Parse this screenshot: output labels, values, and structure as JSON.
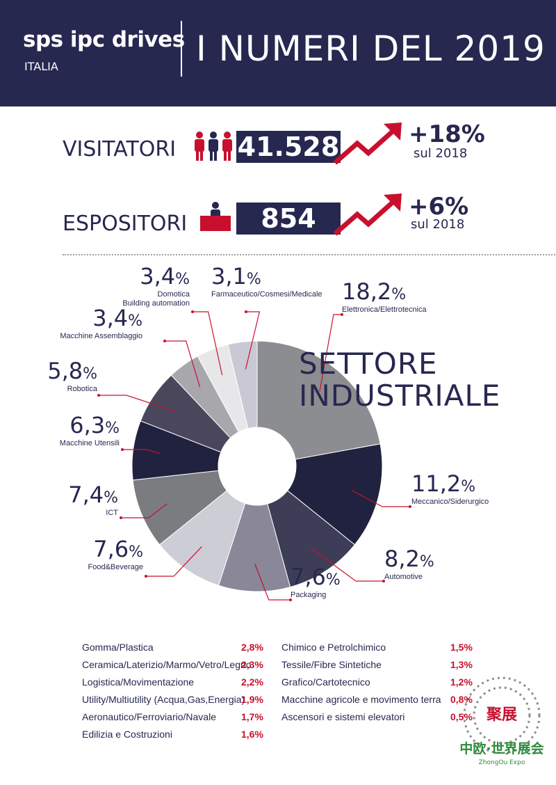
{
  "header": {
    "brand": "sps ipc drives",
    "brand_sub": "ITALIA",
    "title": "I NUMERI DEL 2019"
  },
  "stats": {
    "visitors": {
      "label": "VISITATORI",
      "value": "41.528",
      "change": "+18%",
      "change_note": "sul 2018"
    },
    "exhibitors": {
      "label": "ESPOSITORI",
      "value": "854",
      "change": "+6%",
      "change_note": "sul 2018"
    }
  },
  "colors": {
    "navy": "#262850",
    "red": "#c8102e"
  },
  "chart_data": {
    "type": "pie",
    "title": "SETTORE INDUSTRIALE",
    "slices": [
      {
        "label": "Elettronica/Elettrotecnica",
        "value": 18.2,
        "value_label": "18,2",
        "color": "#8c8d91"
      },
      {
        "label": "Meccanico/Siderurgico",
        "value": 11.2,
        "value_label": "11,2",
        "color": "#20223f"
      },
      {
        "label": "Automotive",
        "value": 8.2,
        "value_label": "8,2",
        "color": "#3d3d58"
      },
      {
        "label": "Packaging",
        "value": 7.6,
        "value_label": "7,6",
        "color": "#8a8799"
      },
      {
        "label": "Food&Beverage",
        "value": 7.6,
        "value_label": "7,6",
        "color": "#cdcdd6"
      },
      {
        "label": "ICT",
        "value": 7.4,
        "value_label": "7,4",
        "color": "#7b7c80"
      },
      {
        "label": "Macchine Utensili",
        "value": 6.3,
        "value_label": "6,3",
        "color": "#20223f"
      },
      {
        "label": "Robotica",
        "value": 5.8,
        "value_label": "5,8",
        "color": "#4a475d"
      },
      {
        "label": "Macchine Assemblaggio",
        "value": 3.4,
        "value_label": "3,4",
        "color": "#a8a8ac"
      },
      {
        "label": "Domotica\nBuilding automation",
        "value": 3.4,
        "value_label": "3,4",
        "color": "#e7e7ea"
      },
      {
        "label": "Farmaceutico/Cosmesi/Medicale",
        "value": 3.1,
        "value_label": "3,1",
        "color": "#c9c8d4"
      }
    ],
    "pct_symbol": "%"
  },
  "other_sectors": [
    {
      "label": "Gomma/Plastica",
      "value": "2,8%"
    },
    {
      "label": "Ceramica/Laterizio/Marmo/Vetro/Legno",
      "value": "2,3%"
    },
    {
      "label": "Logistica/Movimentazione",
      "value": "2,2%"
    },
    {
      "label": "Utility/Multiutility (Acqua,Gas,Energia)",
      "value": "1,9%"
    },
    {
      "label": "Aeronautico/Ferroviario/Navale",
      "value": "1,7%"
    },
    {
      "label": "Edilizia e Costruzioni",
      "value": "1,6%"
    },
    {
      "label": "Chimico e Petrolchimico",
      "value": "1,5%"
    },
    {
      "label": "Tessile/Fibre Sintetiche",
      "value": "1,3%"
    },
    {
      "label": "Grafico/Cartotecnico",
      "value": "1,2%"
    },
    {
      "label": "Macchine agricole e movimento terra",
      "value": "0,8%"
    },
    {
      "label": "Ascensori e sistemi elevatori",
      "value": "0,5%"
    }
  ],
  "watermark": {
    "line1": "聚展",
    "line2": "中欧·世界展会",
    "line3": "ZhongOu Expo"
  }
}
